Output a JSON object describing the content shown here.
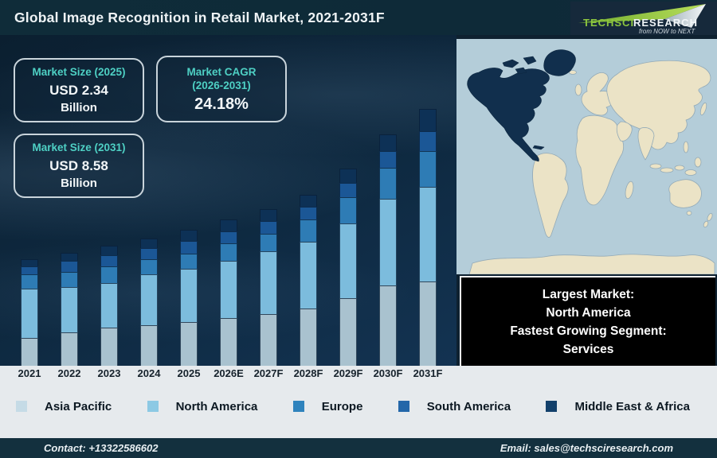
{
  "header": {
    "title": "Global Image Recognition in Retail Market, 2021-2031F",
    "logo": {
      "brand_primary": "TechSci",
      "brand_secondary": "Research",
      "tagline": "from NOW to NEXT",
      "accent_color": "#8dc63f"
    }
  },
  "info_boxes": {
    "size_2025": {
      "title": "Market Size (2025)",
      "value": "USD 2.34",
      "unit": "Billion"
    },
    "cagr": {
      "title_line1": "Market CAGR",
      "title_line2": "(2026-2031)",
      "value": "24.18%"
    },
    "size_2031": {
      "title": "Market Size (2031)",
      "value": "USD 8.58",
      "unit": "Billion"
    }
  },
  "chart_data": {
    "type": "bar",
    "stacked": true,
    "title": "Global Image Recognition in Retail Market, 2021-2031F",
    "categories": [
      "2021",
      "2022",
      "2023",
      "2024",
      "2025",
      "2026E",
      "2027F",
      "2028F",
      "2029F",
      "2030F",
      "2031F"
    ],
    "series": [
      {
        "name": "Asia Pacific",
        "color": "#a9c2cf",
        "values": [
          35,
          42,
          48,
          51,
          55,
          60,
          65,
          72,
          85,
          101,
          106
        ]
      },
      {
        "name": "North America",
        "color": "#7cbcdd",
        "values": [
          62,
          57,
          56,
          64,
          67,
          72,
          79,
          84,
          94,
          109,
          119
        ]
      },
      {
        "name": "Europe",
        "color": "#2e7cb5",
        "values": [
          18,
          19,
          21,
          19,
          19,
          22,
          22,
          28,
          33,
          39,
          45
        ]
      },
      {
        "name": "South America",
        "color": "#1b5796",
        "values": [
          10,
          14,
          14,
          14,
          16,
          15,
          16,
          16,
          18,
          21,
          25
        ]
      },
      {
        "name": "Middle East & Africa",
        "color": "#0d3156",
        "values": [
          9,
          10,
          12,
          12,
          14,
          15,
          15,
          15,
          18,
          21,
          28
        ]
      }
    ],
    "value_axis": "hidden (no y-axis shown; values are relative bar heights in px)",
    "legend_position": "bottom",
    "known_anchors": {
      "market_size_2025": "USD 2.34 Billion",
      "market_size_2031": "USD 8.58 Billion",
      "cagr_2026_2031": "24.18%"
    }
  },
  "map": {
    "highlighted_region": "North America",
    "ocean_color": "#b4cdd9",
    "land_color": "#ebe3c6",
    "highlight_color": "#112f4d"
  },
  "callout": {
    "line1": "Largest Market:",
    "line2": "North America",
    "line3": "Fastest Growing Segment:",
    "line4": "Services"
  },
  "legend": [
    {
      "label": "Asia Pacific",
      "color": "#c5dbe6"
    },
    {
      "label": "North America",
      "color": "#8cc9e4"
    },
    {
      "label": "Europe",
      "color": "#2f83bd"
    },
    {
      "label": "South America",
      "color": "#2367a9"
    },
    {
      "label": "Middle East & Africa",
      "color": "#12406b"
    }
  ],
  "footer": {
    "contact": "Contact: +13322586602",
    "email": "Email: sales@techsciresearch.com"
  }
}
